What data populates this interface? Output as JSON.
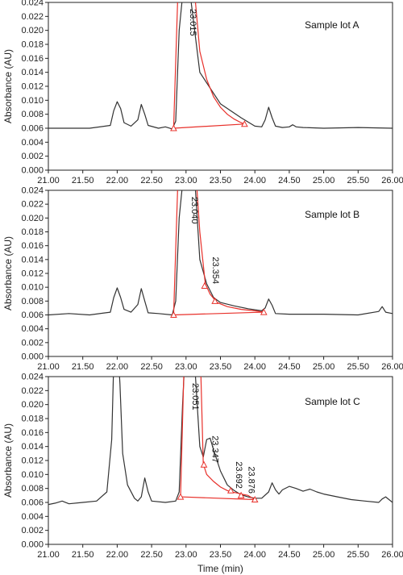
{
  "chart_data": [
    {
      "type": "line",
      "panel_label": "Sample lot A",
      "ylabel": "Absorbance (AU)",
      "xlabel": "",
      "xlim": [
        21.0,
        26.0
      ],
      "ylim": [
        0.0,
        0.024
      ],
      "x_ticks": [
        "21.00",
        "21.50",
        "22.00",
        "22.50",
        "23.00",
        "23.50",
        "24.00",
        "24.50",
        "25.00",
        "25.50",
        "26.00"
      ],
      "y_ticks": [
        "0.000",
        "0.002",
        "0.004",
        "0.006",
        "0.008",
        "0.010",
        "0.012",
        "0.014",
        "0.016",
        "0.018",
        "0.020",
        "0.022",
        "0.024"
      ],
      "grid": false,
      "series": [
        {
          "color": "#333333",
          "x": [
            21.0,
            21.3,
            21.6,
            21.9,
            21.95,
            22.0,
            22.05,
            22.1,
            22.2,
            22.3,
            22.35,
            22.4,
            22.45,
            22.6,
            22.7,
            22.8,
            22.85,
            22.9,
            23.0,
            23.2,
            23.5,
            23.8,
            24.0,
            24.1,
            24.15,
            24.2,
            24.25,
            24.3,
            24.4,
            24.5,
            24.55,
            24.6,
            24.7,
            25.0,
            25.5,
            26.0
          ],
          "y": [
            0.006,
            0.006,
            0.006,
            0.0064,
            0.0085,
            0.0098,
            0.0088,
            0.0068,
            0.0063,
            0.0072,
            0.0094,
            0.008,
            0.0064,
            0.006,
            0.0062,
            0.0059,
            0.007,
            0.02,
            0.03,
            0.014,
            0.0095,
            0.0075,
            0.0063,
            0.0062,
            0.0072,
            0.009,
            0.0075,
            0.0063,
            0.0061,
            0.0062,
            0.0065,
            0.0062,
            0.0061,
            0.006,
            0.0061,
            0.006
          ]
        }
      ],
      "integration": {
        "color": "#e8302a",
        "peak": {
          "x": [
            22.82,
            22.88,
            22.94,
            23.0,
            23.06,
            23.12,
            23.2,
            23.3,
            23.4,
            23.5,
            23.6,
            23.7,
            23.8,
            23.85
          ],
          "y": [
            0.006,
            0.025,
            0.03,
            0.03,
            0.03,
            0.026,
            0.017,
            0.013,
            0.0105,
            0.009,
            0.008,
            0.0073,
            0.0068,
            0.0066
          ]
        },
        "baseline": [
          [
            22.82,
            0.006
          ],
          [
            23.85,
            0.0066
          ]
        ],
        "markers": [
          [
            22.82,
            0.006
          ],
          [
            23.85,
            0.0066
          ]
        ]
      },
      "annotations": [
        {
          "text": "23.015",
          "x": 23.015
        }
      ]
    },
    {
      "type": "line",
      "panel_label": "Sample lot B",
      "ylabel": "Absorbance (AU)",
      "xlabel": "",
      "xlim": [
        21.0,
        26.0
      ],
      "ylim": [
        0.0,
        0.024
      ],
      "x_ticks": [
        "21.00",
        "21.50",
        "22.00",
        "22.50",
        "23.00",
        "23.50",
        "24.00",
        "24.50",
        "25.00",
        "25.50",
        "26.00"
      ],
      "y_ticks": [
        "0.000",
        "0.002",
        "0.004",
        "0.006",
        "0.008",
        "0.010",
        "0.012",
        "0.014",
        "0.016",
        "0.018",
        "0.020",
        "0.022",
        "0.024"
      ],
      "grid": false,
      "series": [
        {
          "color": "#333333",
          "x": [
            21.0,
            21.3,
            21.6,
            21.9,
            21.95,
            22.0,
            22.05,
            22.1,
            22.2,
            22.3,
            22.35,
            22.4,
            22.45,
            22.6,
            22.8,
            22.85,
            22.9,
            23.0,
            23.1,
            23.2,
            23.3,
            23.4,
            23.5,
            23.7,
            23.9,
            24.1,
            24.15,
            24.2,
            24.25,
            24.3,
            24.5,
            25.0,
            25.5,
            25.8,
            25.85,
            25.9,
            26.0
          ],
          "y": [
            0.006,
            0.0062,
            0.006,
            0.0064,
            0.0085,
            0.0099,
            0.0085,
            0.0068,
            0.0064,
            0.0075,
            0.0098,
            0.008,
            0.0063,
            0.0062,
            0.006,
            0.008,
            0.02,
            0.03,
            0.03,
            0.014,
            0.0105,
            0.0085,
            0.0078,
            0.0073,
            0.0069,
            0.0066,
            0.007,
            0.0083,
            0.0074,
            0.0062,
            0.0061,
            0.0061,
            0.006,
            0.0065,
            0.0072,
            0.0064,
            0.0062
          ]
        }
      ],
      "integration": {
        "color": "#e8302a",
        "peak": {
          "x": [
            22.82,
            22.88,
            22.94,
            23.0,
            23.06,
            23.12,
            23.2,
            23.28,
            23.35,
            23.45,
            23.6,
            23.8,
            24.0,
            24.13
          ],
          "y": [
            0.006,
            0.025,
            0.03,
            0.03,
            0.03,
            0.03,
            0.018,
            0.0105,
            0.009,
            0.0078,
            0.0072,
            0.0068,
            0.0066,
            0.0064
          ]
        },
        "baseline": [
          [
            22.82,
            0.006
          ],
          [
            24.13,
            0.0064
          ]
        ],
        "markers": [
          [
            22.82,
            0.006
          ],
          [
            23.27,
            0.0102
          ],
          [
            23.42,
            0.008
          ],
          [
            24.13,
            0.0064
          ]
        ]
      },
      "annotations": [
        {
          "text": "23.040",
          "x": 23.04
        },
        {
          "text": "23.354",
          "x": 23.354
        }
      ]
    },
    {
      "type": "line",
      "panel_label": "Sample lot C",
      "ylabel": "Absorbance (AU)",
      "xlabel": "Time (min)",
      "xlim": [
        21.0,
        26.0
      ],
      "ylim": [
        0.0,
        0.024
      ],
      "x_ticks": [
        "21.00",
        "21.50",
        "22.00",
        "22.50",
        "23.00",
        "23.50",
        "24.00",
        "24.50",
        "25.00",
        "25.50",
        "26.00"
      ],
      "y_ticks": [
        "0.000",
        "0.002",
        "0.004",
        "0.006",
        "0.008",
        "0.010",
        "0.012",
        "0.014",
        "0.016",
        "0.018",
        "0.020",
        "0.022",
        "0.024"
      ],
      "grid": false,
      "series": [
        {
          "color": "#333333",
          "x": [
            21.0,
            21.1,
            21.2,
            21.3,
            21.5,
            21.7,
            21.85,
            21.92,
            21.96,
            22.0,
            22.04,
            22.08,
            22.15,
            22.25,
            22.3,
            22.35,
            22.4,
            22.45,
            22.5,
            22.7,
            22.85,
            22.9,
            22.95,
            23.0,
            23.1,
            23.2,
            23.25,
            23.3,
            23.35,
            23.4,
            23.5,
            23.6,
            23.7,
            23.8,
            23.9,
            24.0,
            24.1,
            24.2,
            24.25,
            24.3,
            24.35,
            24.4,
            24.5,
            24.6,
            24.7,
            24.8,
            24.9,
            25.0,
            25.2,
            25.4,
            25.6,
            25.8,
            25.85,
            25.9,
            26.0
          ],
          "y": [
            0.0057,
            0.0059,
            0.0062,
            0.0058,
            0.006,
            0.0062,
            0.0075,
            0.015,
            0.03,
            0.03,
            0.023,
            0.013,
            0.0085,
            0.0066,
            0.0062,
            0.0068,
            0.0095,
            0.0075,
            0.0062,
            0.006,
            0.0062,
            0.0075,
            0.02,
            0.03,
            0.03,
            0.014,
            0.0125,
            0.015,
            0.0152,
            0.0135,
            0.0105,
            0.0085,
            0.0077,
            0.0071,
            0.0068,
            0.0066,
            0.0066,
            0.0075,
            0.0088,
            0.0078,
            0.0072,
            0.0078,
            0.0083,
            0.008,
            0.0076,
            0.0079,
            0.0075,
            0.0072,
            0.0068,
            0.0064,
            0.0062,
            0.006,
            0.0065,
            0.0068,
            0.006
          ]
        }
      ],
      "integration": {
        "color": "#e8302a",
        "peak": {
          "x": [
            22.92,
            22.97,
            23.02,
            23.08,
            23.14,
            23.2,
            23.25,
            23.3,
            23.4,
            23.5,
            23.6,
            23.66,
            23.72,
            23.8,
            23.9,
            24.0
          ],
          "y": [
            0.0068,
            0.025,
            0.03,
            0.03,
            0.03,
            0.03,
            0.0115,
            0.01,
            0.009,
            0.0082,
            0.0077,
            0.0075,
            0.0074,
            0.0072,
            0.007,
            0.0064
          ]
        },
        "baseline": [
          [
            22.92,
            0.0068
          ],
          [
            24.0,
            0.0064
          ]
        ],
        "markers": [
          [
            22.92,
            0.0068
          ],
          [
            23.26,
            0.0114
          ],
          [
            23.65,
            0.0077
          ],
          [
            23.8,
            0.007
          ],
          [
            24.0,
            0.0064
          ]
        ]
      },
      "annotations": [
        {
          "text": "23.051",
          "x": 23.051
        },
        {
          "text": "23.347",
          "x": 23.347
        },
        {
          "text": "23.692",
          "x": 23.692
        },
        {
          "text": "23.876",
          "x": 23.876
        }
      ]
    }
  ]
}
